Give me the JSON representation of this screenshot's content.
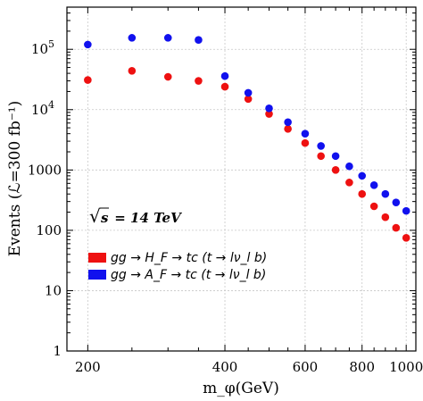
{
  "chart_data": {
    "type": "scatter",
    "xlabel": "m_φ(GeV)",
    "ylabel": "Events (ℒ=300 fb⁻¹)",
    "x_scale": "log",
    "y_scale": "log",
    "xlim": [
      180,
      1050
    ],
    "ylim": [
      1,
      500000
    ],
    "x_ticks": [
      {
        "value": 200,
        "label": "200"
      },
      {
        "value": 400,
        "label": "400"
      },
      {
        "value": 600,
        "label": "600"
      },
      {
        "value": 800,
        "label": "800"
      },
      {
        "value": 1000,
        "label": "1000"
      }
    ],
    "y_ticks": [
      {
        "value": 1,
        "label": "1"
      },
      {
        "value": 10,
        "label": "10"
      },
      {
        "value": 100,
        "label": "100"
      },
      {
        "value": 1000,
        "label": "1000"
      },
      {
        "value": 10000,
        "label": "10",
        "exp": "4"
      },
      {
        "value": 100000,
        "label": "10",
        "exp": "5"
      }
    ],
    "grid": true,
    "annotation": {
      "sqrt": "√",
      "symbol": "s",
      "rest": " = 14 TeV"
    },
    "legend_placement": "center-left",
    "series": [
      {
        "name": "gg → H_F → tc (t → lν_l b)",
        "color": "#ee1111",
        "points": [
          [
            200,
            31000
          ],
          [
            250,
            44000
          ],
          [
            300,
            35000
          ],
          [
            350,
            30000
          ],
          [
            400,
            24000
          ],
          [
            450,
            15000
          ],
          [
            500,
            8500
          ],
          [
            550,
            4800
          ],
          [
            600,
            2800
          ],
          [
            650,
            1700
          ],
          [
            700,
            1000
          ],
          [
            750,
            620
          ],
          [
            800,
            400
          ],
          [
            850,
            250
          ],
          [
            900,
            165
          ],
          [
            950,
            110
          ],
          [
            1000,
            75
          ]
        ]
      },
      {
        "name": "gg → A_F → tc (t → lν_l b)",
        "color": "#1111ee",
        "points": [
          [
            200,
            120000
          ],
          [
            250,
            155000
          ],
          [
            300,
            155000
          ],
          [
            350,
            143000
          ],
          [
            400,
            36000
          ],
          [
            450,
            19000
          ],
          [
            500,
            10500
          ],
          [
            550,
            6200
          ],
          [
            600,
            4000
          ],
          [
            650,
            2500
          ],
          [
            700,
            1700
          ],
          [
            750,
            1150
          ],
          [
            800,
            800
          ],
          [
            850,
            560
          ],
          [
            900,
            400
          ],
          [
            950,
            290
          ],
          [
            1000,
            210
          ]
        ]
      }
    ]
  }
}
